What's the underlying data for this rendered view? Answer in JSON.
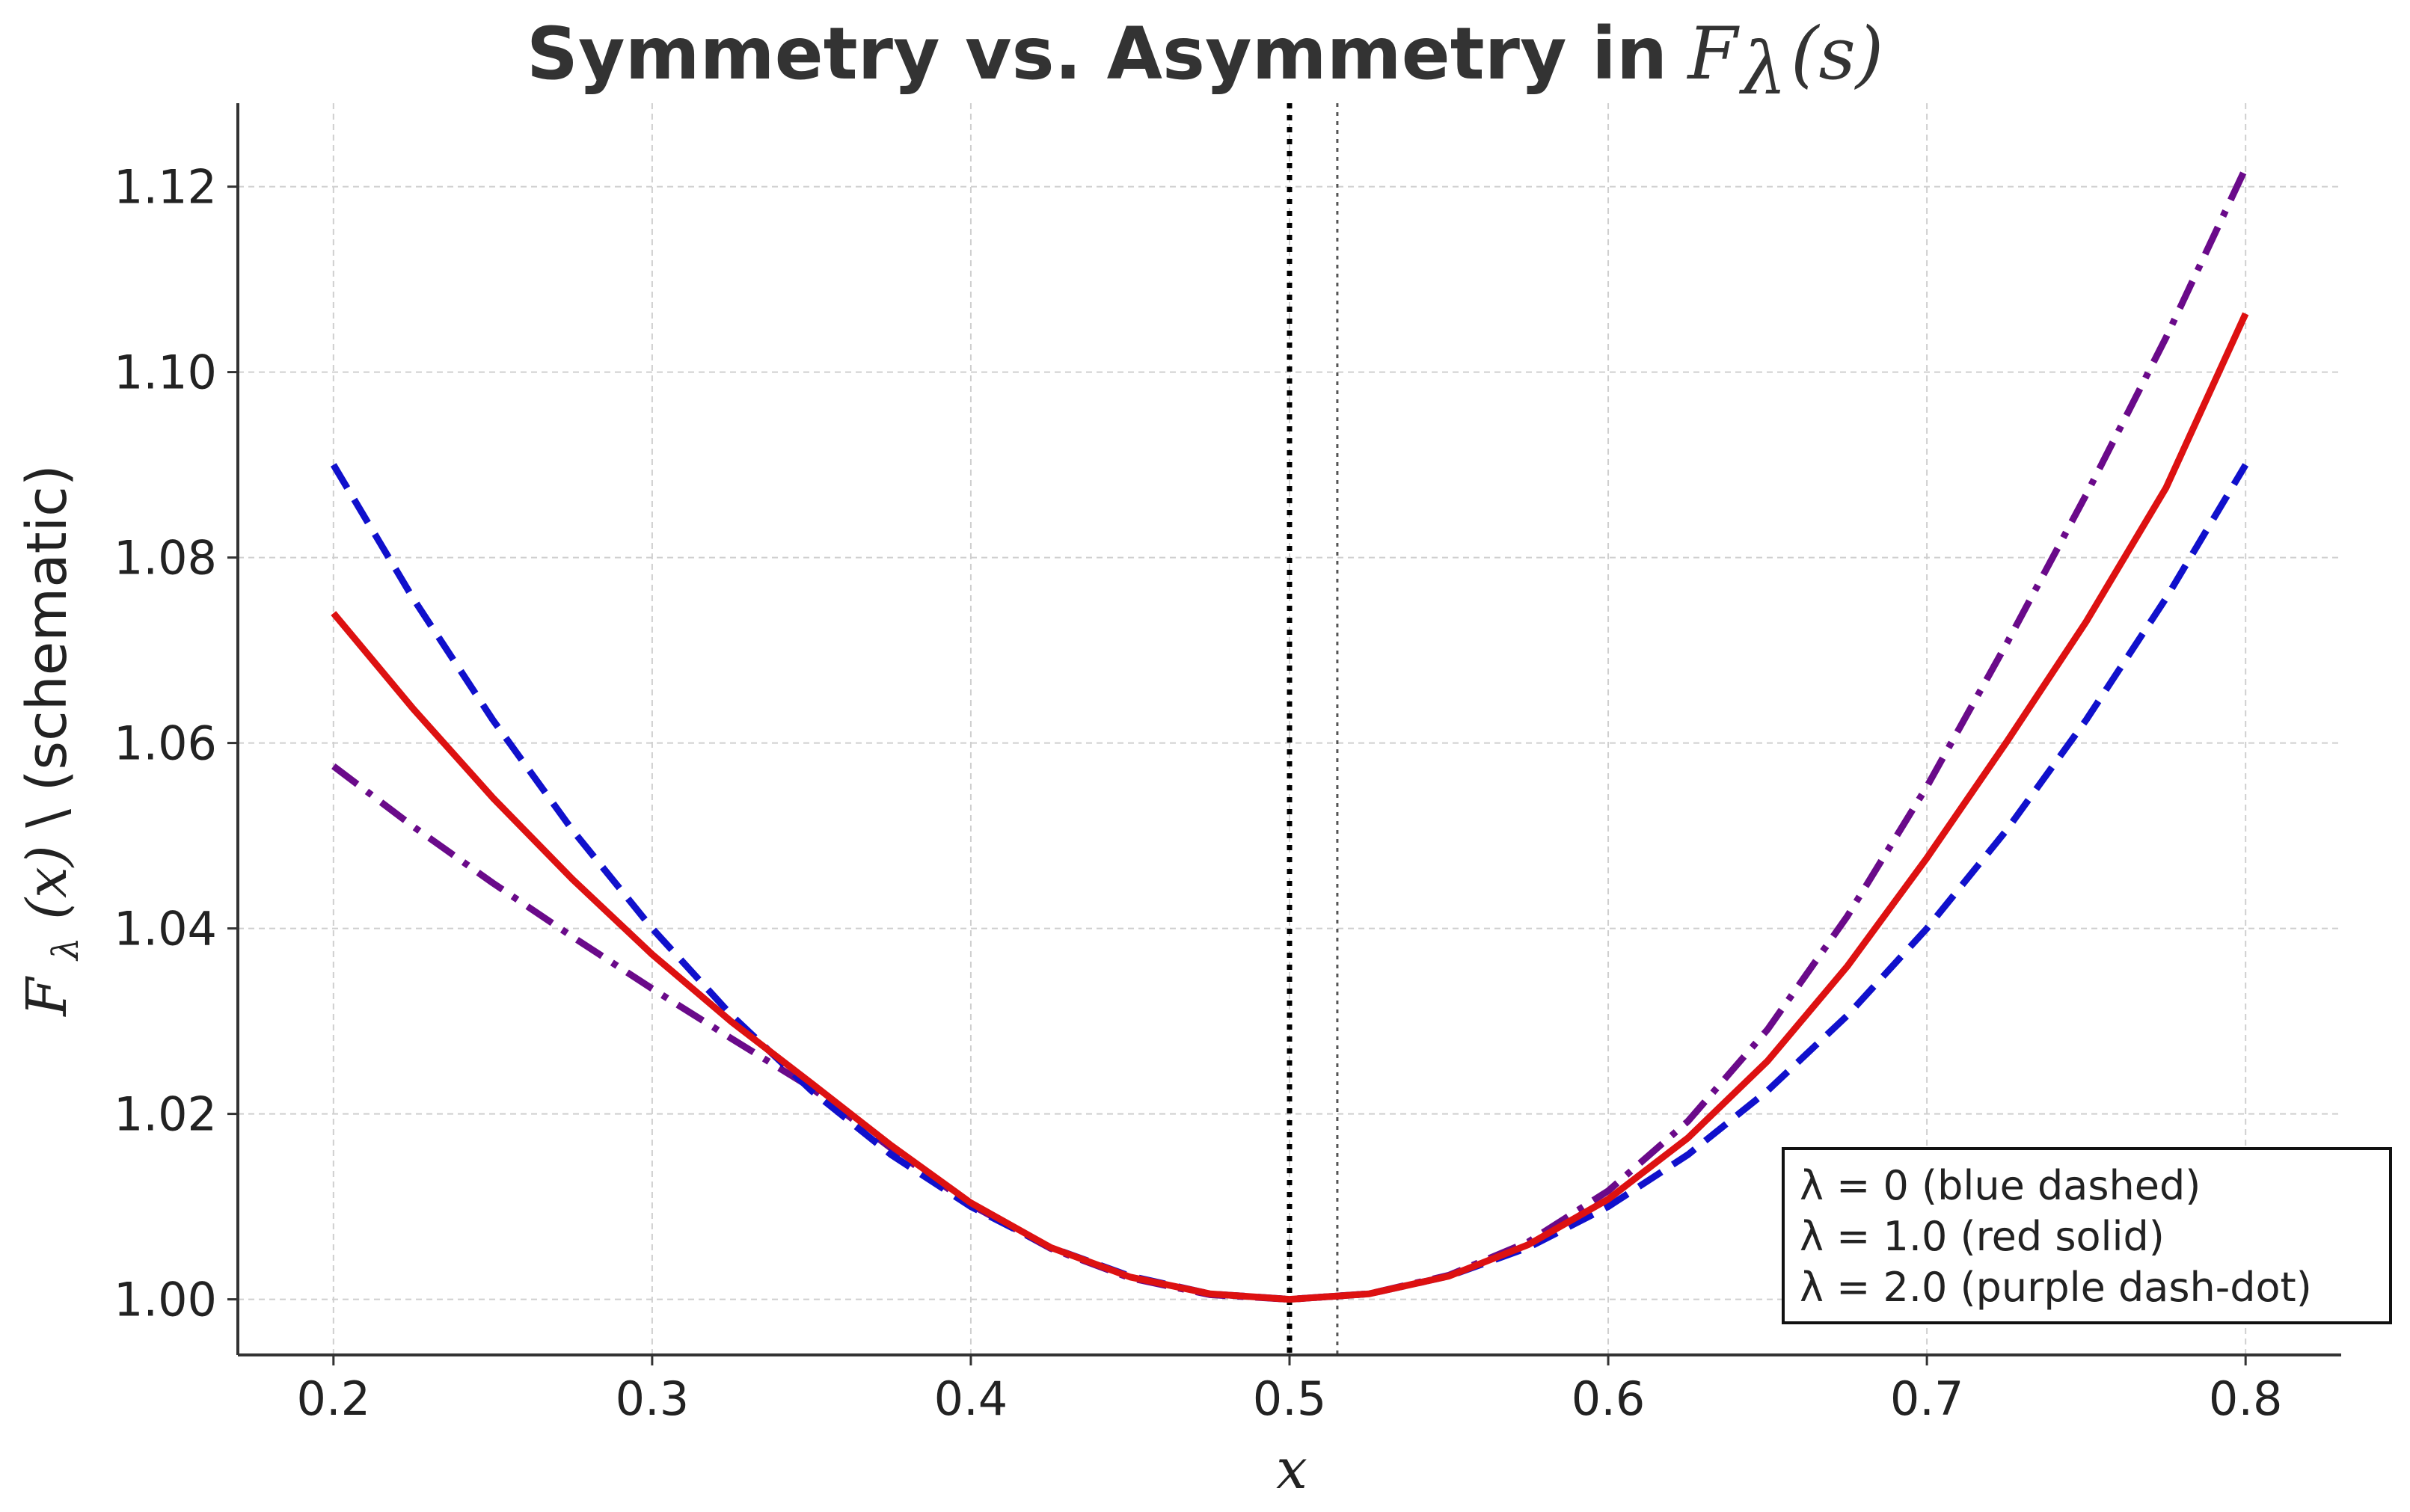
{
  "chart_data": {
    "type": "line",
    "title": "Symmetry vs. Asymmetry in",
    "title_math": "F",
    "title_math_sub": "λ",
    "title_math_arg": "(s)",
    "xlabel": "x",
    "ylabel_math": "F",
    "ylabel_math_sub": "λ",
    "ylabel_math_arg": "(x)",
    "ylabel_suffix": "\\ (schematic)",
    "xlim": [
      0.17,
      0.83
    ],
    "ylim": [
      0.994,
      1.129
    ],
    "xticks": [
      0.2,
      0.3,
      0.4,
      0.5,
      0.6,
      0.7,
      0.8
    ],
    "xtick_labels": [
      "0.2",
      "0.3",
      "0.4",
      "0.5",
      "0.6",
      "0.7",
      "0.8"
    ],
    "yticks": [
      1.0,
      1.02,
      1.04,
      1.06,
      1.08,
      1.1,
      1.12
    ],
    "ytick_labels": [
      "1.00",
      "1.02",
      "1.04",
      "1.06",
      "1.08",
      "1.10",
      "1.12"
    ],
    "grid": true,
    "vlines": [
      {
        "x": 0.5,
        "style": "dotted-bold",
        "color": "#000000"
      },
      {
        "x": 0.515,
        "style": "dotted-thin",
        "color": "#555555"
      }
    ],
    "x": [
      0.2,
      0.225,
      0.25,
      0.275,
      0.3,
      0.325,
      0.35,
      0.375,
      0.4,
      0.425,
      0.45,
      0.475,
      0.5,
      0.525,
      0.55,
      0.575,
      0.6,
      0.625,
      0.65,
      0.675,
      0.7,
      0.725,
      0.75,
      0.775,
      0.8
    ],
    "series": [
      {
        "name": "λ = 0",
        "color": "#1010cc",
        "style": "dashed",
        "values": [
          1.09,
          1.0756,
          1.0625,
          1.0506,
          1.04,
          1.0306,
          1.0225,
          1.0156,
          1.01,
          1.0056,
          1.0025,
          1.0006,
          1.0,
          1.0006,
          1.0025,
          1.0056,
          1.01,
          1.0156,
          1.0225,
          1.0306,
          1.04,
          1.0506,
          1.0625,
          1.0756,
          1.09
        ]
      },
      {
        "name": "λ = 1.0",
        "color": "#dd1111",
        "style": "solid",
        "values": [
          1.074,
          1.0637,
          1.0541,
          1.0453,
          1.0372,
          1.0299,
          1.0233,
          1.0166,
          1.0104,
          1.0056,
          1.0024,
          1.0006,
          1.0,
          1.0006,
          1.0025,
          1.0059,
          1.0108,
          1.0174,
          1.0257,
          1.0359,
          1.0476,
          1.0601,
          1.0731,
          1.0875,
          1.1063
        ]
      },
      {
        "name": "λ = 2.0",
        "color": "#6a0a8a",
        "style": "dashdot",
        "values": [
          1.0575,
          1.051,
          1.0449,
          1.0391,
          1.0335,
          1.0281,
          1.0228,
          1.0163,
          1.0102,
          1.0055,
          1.0023,
          1.0005,
          1.0,
          1.0006,
          1.0026,
          1.0062,
          1.0117,
          1.0192,
          1.0291,
          1.0413,
          1.0553,
          1.0707,
          1.0868,
          1.1037,
          1.122
        ]
      }
    ],
    "legend": {
      "position": "bottom-right",
      "entries": [
        "λ = 0 (blue dashed)",
        "λ = 1.0 (red solid)",
        "λ = 2.0 (purple dash-dot)"
      ]
    }
  }
}
